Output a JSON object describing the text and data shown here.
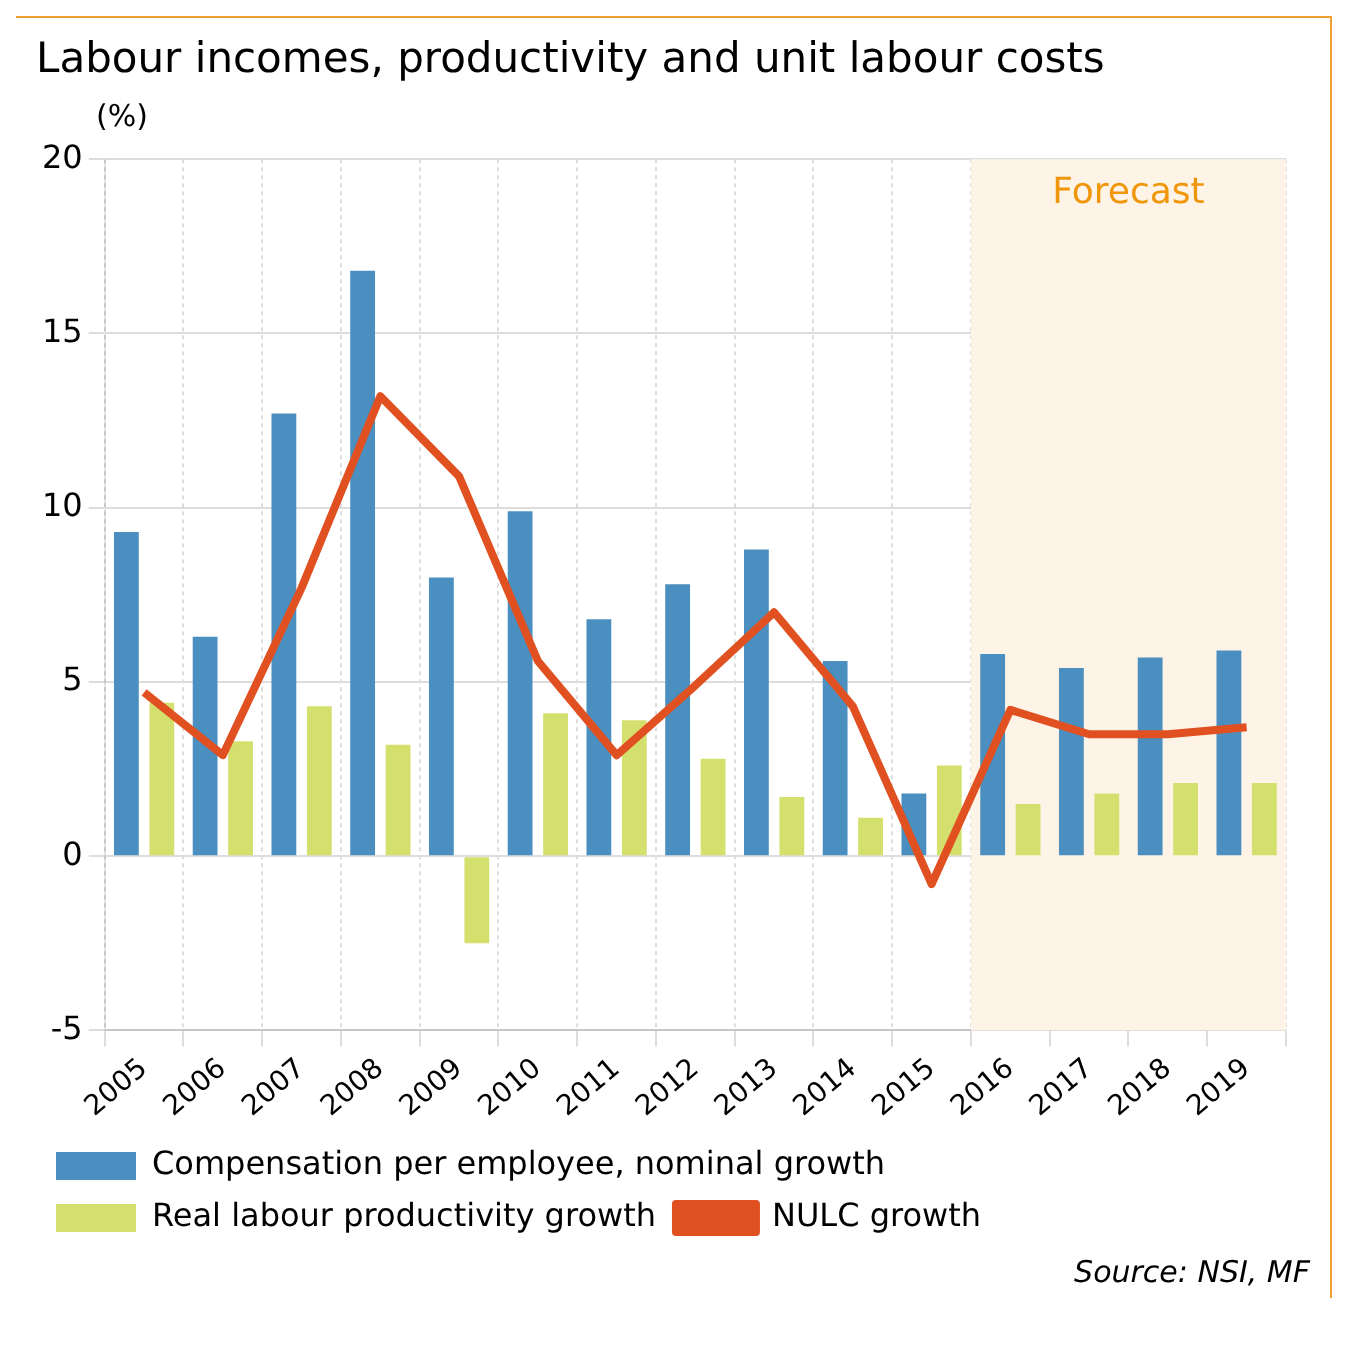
{
  "chart_data": {
    "type": "bar",
    "title": "Labour incomes, productivity and unit labour costs",
    "ylabel": "(%)",
    "categories": [
      "2005",
      "2006",
      "2007",
      "2008",
      "2009",
      "2010",
      "2011",
      "2012",
      "2013",
      "2014",
      "2015",
      "2016",
      "2017",
      "2018",
      "2019"
    ],
    "series": [
      {
        "name": "Compensation per employee, nominal growth",
        "color": "#4a8fc0",
        "values": [
          9.3,
          6.3,
          12.7,
          16.8,
          8.0,
          9.9,
          6.8,
          7.8,
          8.8,
          5.6,
          1.8,
          5.8,
          5.4,
          5.7,
          5.9
        ]
      },
      {
        "name": "Real labour productivity growth",
        "color": "#d4e06e",
        "values": [
          4.4,
          3.3,
          4.3,
          3.2,
          -2.5,
          4.1,
          3.9,
          2.8,
          1.7,
          1.1,
          2.6,
          1.5,
          1.8,
          2.1,
          2.1
        ]
      },
      {
        "name": "NULC growth",
        "type": "line",
        "color": "#e05020",
        "values": [
          4.7,
          2.9,
          7.7,
          13.2,
          10.9,
          5.6,
          2.9,
          4.9,
          7.0,
          4.3,
          -0.8,
          4.2,
          3.5,
          3.5,
          3.7
        ]
      }
    ],
    "ylim": [
      -5,
      20
    ],
    "yticks": [
      -5,
      0,
      5,
      10,
      15,
      20
    ],
    "grid": true,
    "legend": "bottom",
    "marker": "none",
    "bands": [
      {
        "axis": "x",
        "from": "2016",
        "to": "2019",
        "label": "Forecast",
        "color": "#fdf3e6"
      }
    ],
    "annotations": [
      "Source: NSI, MF"
    ]
  }
}
